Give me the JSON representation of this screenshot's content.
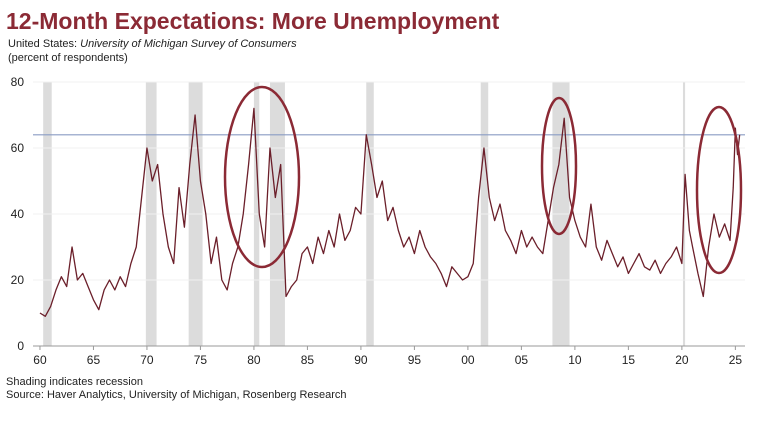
{
  "chart_data": {
    "type": "line",
    "title": "12-Month Expectations: More Unemployment",
    "subtitle_prefix": "United States: ",
    "subtitle_source": "University of Michigan Survey of Consumers",
    "y_label": "(percent of respondents)",
    "footnote": "Shading indicates recession",
    "source": "Source: Haver Analytics, University of Michigan, Rosenberg Research",
    "color": "#6b1f2a",
    "reference_line": 64,
    "reference_color": "#8a9cc4",
    "recession_color": "#dcdcdc",
    "grid": true,
    "xlim": [
      1959.35,
      2025.9
    ],
    "ylim": [
      0,
      80
    ],
    "yticks": [
      0,
      20,
      40,
      60,
      80
    ],
    "xticks": [
      {
        "value": 1960,
        "label": "60"
      },
      {
        "value": 1965,
        "label": "65"
      },
      {
        "value": 1970,
        "label": "70"
      },
      {
        "value": 1975,
        "label": "75"
      },
      {
        "value": 1980,
        "label": "80"
      },
      {
        "value": 1985,
        "label": "85"
      },
      {
        "value": 1990,
        "label": "90"
      },
      {
        "value": 1995,
        "label": "95"
      },
      {
        "value": 2000,
        "label": "00"
      },
      {
        "value": 2005,
        "label": "05"
      },
      {
        "value": 2010,
        "label": "10"
      },
      {
        "value": 2015,
        "label": "15"
      },
      {
        "value": 2020,
        "label": "20"
      },
      {
        "value": 2025,
        "label": "25"
      }
    ],
    "recessions": [
      [
        1960.3,
        1961.1
      ],
      [
        1969.9,
        1970.9
      ],
      [
        1973.9,
        1975.2
      ],
      [
        1980.0,
        1980.5
      ],
      [
        1981.5,
        1982.9
      ],
      [
        1990.5,
        1991.2
      ],
      [
        2001.2,
        2001.9
      ],
      [
        2007.9,
        2009.5
      ],
      [
        2020.1,
        2020.3
      ]
    ],
    "x": [
      1960.0,
      1960.5,
      1961.0,
      1961.5,
      1962.0,
      1962.5,
      1963.0,
      1963.5,
      1964.0,
      1964.5,
      1965.0,
      1965.5,
      1966.0,
      1966.5,
      1967.0,
      1967.5,
      1968.0,
      1968.5,
      1969.0,
      1969.5,
      1970.0,
      1970.5,
      1971.0,
      1971.5,
      1972.0,
      1972.5,
      1973.0,
      1973.5,
      1974.0,
      1974.5,
      1975.0,
      1975.5,
      1976.0,
      1976.5,
      1977.0,
      1977.5,
      1978.0,
      1978.5,
      1979.0,
      1979.5,
      1980.0,
      1980.5,
      1981.0,
      1981.5,
      1982.0,
      1982.5,
      1983.0,
      1983.5,
      1984.0,
      1984.5,
      1985.0,
      1985.5,
      1986.0,
      1986.5,
      1987.0,
      1987.5,
      1988.0,
      1988.5,
      1989.0,
      1989.5,
      1990.0,
      1990.5,
      1991.0,
      1991.5,
      1992.0,
      1992.5,
      1993.0,
      1993.5,
      1994.0,
      1994.5,
      1995.0,
      1995.5,
      1996.0,
      1996.5,
      1997.0,
      1997.5,
      1998.0,
      1998.5,
      1999.0,
      1999.5,
      2000.0,
      2000.5,
      2001.0,
      2001.5,
      2002.0,
      2002.5,
      2003.0,
      2003.5,
      2004.0,
      2004.5,
      2005.0,
      2005.5,
      2006.0,
      2006.5,
      2007.0,
      2007.5,
      2008.0,
      2008.5,
      2009.0,
      2009.5,
      2010.0,
      2010.5,
      2011.0,
      2011.5,
      2012.0,
      2012.5,
      2013.0,
      2013.5,
      2014.0,
      2014.5,
      2015.0,
      2015.5,
      2016.0,
      2016.5,
      2017.0,
      2017.5,
      2018.0,
      2018.5,
      2019.0,
      2019.5,
      2020.0,
      2020.3,
      2020.7,
      2021.0,
      2021.5,
      2022.0,
      2022.5,
      2023.0,
      2023.5,
      2024.0,
      2024.5,
      2024.8,
      2025.0,
      2025.2,
      2025.4
    ],
    "values": [
      10,
      9,
      12,
      17,
      21,
      18,
      30,
      20,
      22,
      18,
      14,
      11,
      17,
      20,
      17,
      21,
      18,
      25,
      30,
      45,
      60,
      50,
      55,
      40,
      30,
      25,
      48,
      36,
      55,
      70,
      50,
      40,
      25,
      33,
      20,
      17,
      25,
      30,
      40,
      55,
      72,
      40,
      30,
      60,
      45,
      55,
      15,
      18,
      20,
      28,
      30,
      25,
      33,
      28,
      35,
      30,
      40,
      32,
      35,
      42,
      40,
      64,
      55,
      45,
      50,
      38,
      42,
      35,
      30,
      33,
      28,
      35,
      30,
      27,
      25,
      22,
      18,
      24,
      22,
      20,
      21,
      25,
      45,
      60,
      45,
      38,
      43,
      35,
      32,
      28,
      35,
      30,
      33,
      30,
      28,
      38,
      48,
      55,
      69,
      45,
      38,
      33,
      30,
      43,
      30,
      26,
      32,
      28,
      24,
      27,
      22,
      25,
      28,
      24,
      23,
      26,
      22,
      25,
      27,
      30,
      25,
      52,
      35,
      30,
      22,
      15,
      30,
      40,
      33,
      37,
      32,
      48,
      66,
      58,
      64
    ]
  }
}
